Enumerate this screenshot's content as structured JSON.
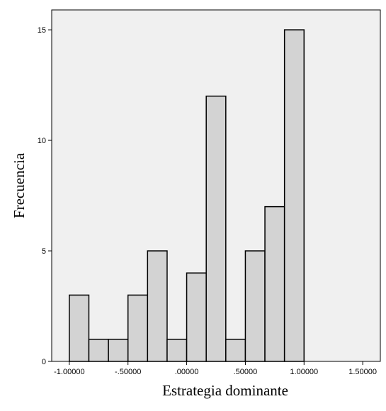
{
  "chart_data": {
    "type": "bar",
    "chart_subtype": "histogram",
    "title": "",
    "xlabel": "Estrategia dominante",
    "ylabel": "Frecuencia",
    "xlim": [
      -1.15,
      1.65
    ],
    "ylim": [
      0,
      15.9
    ],
    "grid": false,
    "legend": "none",
    "bin_width": 0.166667,
    "bins": [
      {
        "start": -1.0,
        "end": -0.833333,
        "count": 3
      },
      {
        "start": -0.833333,
        "end": -0.666667,
        "count": 1
      },
      {
        "start": -0.666667,
        "end": -0.5,
        "count": 1
      },
      {
        "start": -0.5,
        "end": -0.333333,
        "count": 3
      },
      {
        "start": -0.333333,
        "end": -0.166667,
        "count": 5
      },
      {
        "start": -0.166667,
        "end": 0.0,
        "count": 1
      },
      {
        "start": 0.0,
        "end": 0.166667,
        "count": 4
      },
      {
        "start": 0.166667,
        "end": 0.333333,
        "count": 12
      },
      {
        "start": 0.333333,
        "end": 0.5,
        "count": 1
      },
      {
        "start": 0.5,
        "end": 0.666667,
        "count": 5
      },
      {
        "start": 0.666667,
        "end": 0.833333,
        "count": 7
      },
      {
        "start": 0.833333,
        "end": 1.0,
        "count": 15
      }
    ],
    "x_ticks": [
      {
        "value": -1.0,
        "label": "-1.00000"
      },
      {
        "value": -0.5,
        "label": "-.50000"
      },
      {
        "value": 0.0,
        "label": ".00000"
      },
      {
        "value": 0.5,
        "label": ".50000"
      },
      {
        "value": 1.0,
        "label": "1.00000"
      },
      {
        "value": 1.5,
        "label": "1.50000"
      }
    ],
    "y_ticks": [
      {
        "value": 0,
        "label": "0"
      },
      {
        "value": 5,
        "label": "5"
      },
      {
        "value": 10,
        "label": "10"
      },
      {
        "value": 15,
        "label": "15"
      }
    ],
    "colors": {
      "bar_fill": "#d3d3d3",
      "bar_stroke": "#000000",
      "plot_background": "#f0f0f0"
    }
  }
}
